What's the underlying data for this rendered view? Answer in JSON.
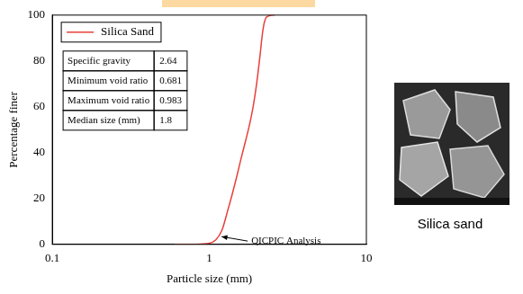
{
  "chart_data": {
    "type": "line",
    "x_label": "Particle size (mm)",
    "y_label": "Percentage finer",
    "x": [
      0.6,
      0.8,
      1.0,
      1.1,
      1.2,
      1.3,
      1.4,
      1.5,
      1.6,
      1.7,
      1.8,
      1.9,
      2.0,
      2.1,
      2.2,
      2.3,
      2.5,
      2.6
    ],
    "series": [
      {
        "name": "Silica Sand",
        "color": "#e8403a",
        "values": [
          0,
          0,
          0.5,
          2,
          6,
          14,
          22,
          30,
          38,
          45,
          52,
          60,
          70,
          82,
          94,
          99,
          100,
          100
        ]
      }
    ],
    "xlim": [
      0.1,
      10
    ],
    "xticks": [
      0.1,
      1,
      10
    ],
    "ylim": [
      0,
      100
    ],
    "yticks": [
      0,
      20,
      40,
      60,
      80,
      100
    ],
    "log": "x",
    "grid": false,
    "legend": "upper left",
    "annotations": [
      {
        "text": "QICPIC Analysis",
        "x": 1.15,
        "y": 3
      }
    ],
    "table": {
      "rows": [
        [
          "Specific gravity",
          2.64
        ],
        [
          "Minimum void ratio",
          0.681
        ],
        [
          "Maximum void ratio",
          0.983
        ],
        [
          "Median size (mm)",
          1.8
        ]
      ]
    }
  },
  "figure": {
    "image_caption": "Silica sand"
  }
}
